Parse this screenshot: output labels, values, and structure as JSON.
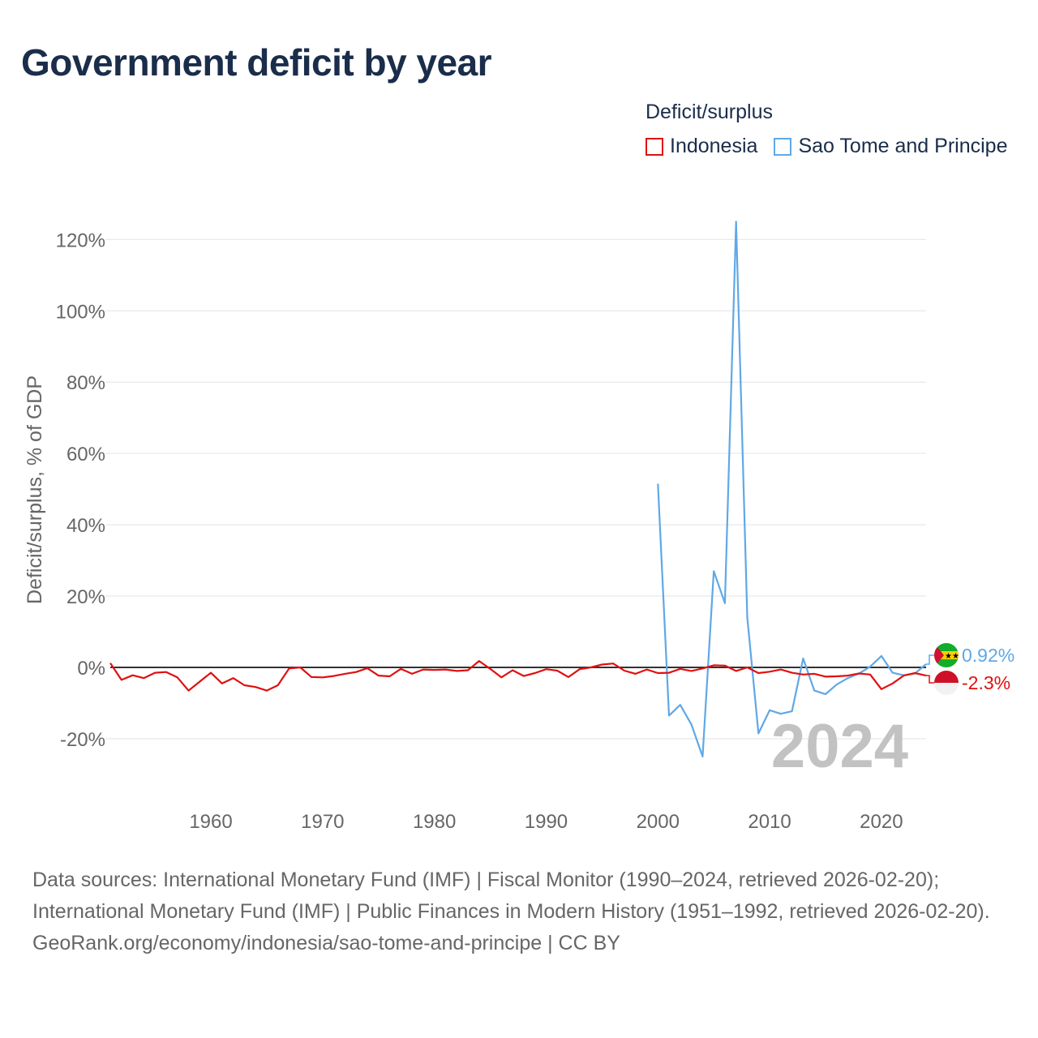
{
  "colors": {
    "indonesia": "#e01010",
    "sao_tome": "#5fa8e6",
    "text_dark": "#1a2d4a",
    "text_gray": "#666666",
    "watermark": "#c2c2c2"
  },
  "flags": [
    "indonesia-flag",
    "sao-tome-and-principe-flag"
  ],
  "chart_data": {
    "type": "line",
    "title": "Government deficit by year",
    "xlabel": "",
    "ylabel": "Deficit/surplus, % of GDP",
    "xlim": [
      1951,
      2024
    ],
    "ylim": [
      -30,
      125
    ],
    "yticks": [
      -20,
      0,
      20,
      40,
      60,
      80,
      100,
      120
    ],
    "ytick_labels": [
      "-20%",
      "0%",
      "20%",
      "40%",
      "60%",
      "80%",
      "100%",
      "120%"
    ],
    "xticks": [
      1960,
      1970,
      1980,
      1990,
      2000,
      2010,
      2020
    ],
    "xtick_labels": [
      "1960",
      "1970",
      "1980",
      "1990",
      "2000",
      "2010",
      "2020"
    ],
    "legend_title": "Deficit/surplus",
    "legend_position": "top-right",
    "year_label": "2024",
    "series": [
      {
        "name": "Indonesia",
        "end_label": "-2.3%",
        "x": [
          1951,
          1952,
          1953,
          1954,
          1955,
          1956,
          1957,
          1958,
          1959,
          1960,
          1961,
          1962,
          1963,
          1964,
          1965,
          1966,
          1967,
          1968,
          1969,
          1970,
          1971,
          1972,
          1973,
          1974,
          1975,
          1976,
          1977,
          1978,
          1979,
          1980,
          1981,
          1982,
          1983,
          1984,
          1985,
          1986,
          1987,
          1988,
          1989,
          1990,
          1991,
          1992,
          1993,
          1994,
          1995,
          1996,
          1997,
          1998,
          1999,
          2000,
          2001,
          2002,
          2003,
          2004,
          2005,
          2006,
          2007,
          2008,
          2009,
          2010,
          2011,
          2012,
          2013,
          2014,
          2015,
          2016,
          2017,
          2018,
          2019,
          2020,
          2021,
          2022,
          2023,
          2024
        ],
        "values": [
          1.2,
          -3.5,
          -2.2,
          -3.0,
          -1.5,
          -1.3,
          -2.8,
          -6.5,
          -4.0,
          -1.5,
          -4.5,
          -3.0,
          -5.0,
          -5.5,
          -6.5,
          -5.0,
          -0.3,
          0.0,
          -2.7,
          -2.8,
          -2.4,
          -1.8,
          -1.3,
          -0.2,
          -2.3,
          -2.5,
          -0.4,
          -1.8,
          -0.6,
          -0.7,
          -0.6,
          -1.0,
          -0.8,
          1.8,
          -0.4,
          -2.8,
          -0.8,
          -2.4,
          -1.6,
          -0.5,
          -0.9,
          -2.7,
          -0.5,
          0.0,
          0.8,
          1.1,
          -0.9,
          -1.8,
          -0.6,
          -1.6,
          -1.5,
          -0.4,
          -1.0,
          -0.3,
          0.6,
          0.5,
          -1.0,
          0.0,
          -1.6,
          -1.2,
          -0.6,
          -1.5,
          -2.0,
          -1.8,
          -2.6,
          -2.5,
          -2.3,
          -1.7,
          -2.0,
          -6.1,
          -4.5,
          -2.3,
          -1.6,
          -2.3
        ]
      },
      {
        "name": "Sao Tome and Principe",
        "end_label": "0.92%",
        "x": [
          2000,
          2001,
          2002,
          2003,
          2004,
          2005,
          2006,
          2007,
          2008,
          2009,
          2010,
          2011,
          2012,
          2013,
          2014,
          2015,
          2016,
          2017,
          2018,
          2019,
          2020,
          2021,
          2022,
          2023,
          2024
        ],
        "values": [
          51.5,
          -13.5,
          -10.5,
          -16.0,
          -25.0,
          27.0,
          18.0,
          125.0,
          14.0,
          -18.5,
          -12.0,
          -13.0,
          -12.3,
          2.5,
          -6.5,
          -7.5,
          -4.8,
          -3.0,
          -1.7,
          0.2,
          3.2,
          -1.5,
          -2.2,
          -1.7,
          0.92
        ]
      }
    ],
    "sources": [
      "Data sources: International Monetary Fund (IMF) | Fiscal Monitor (1990–2024, retrieved 2026-02-20); International Monetary Fund (IMF) | Public Finances in Modern History (1951–1992, retrieved 2026-02-20).",
      "GeoRank.org/economy/indonesia/sao-tome-and-principe | CC BY"
    ]
  }
}
